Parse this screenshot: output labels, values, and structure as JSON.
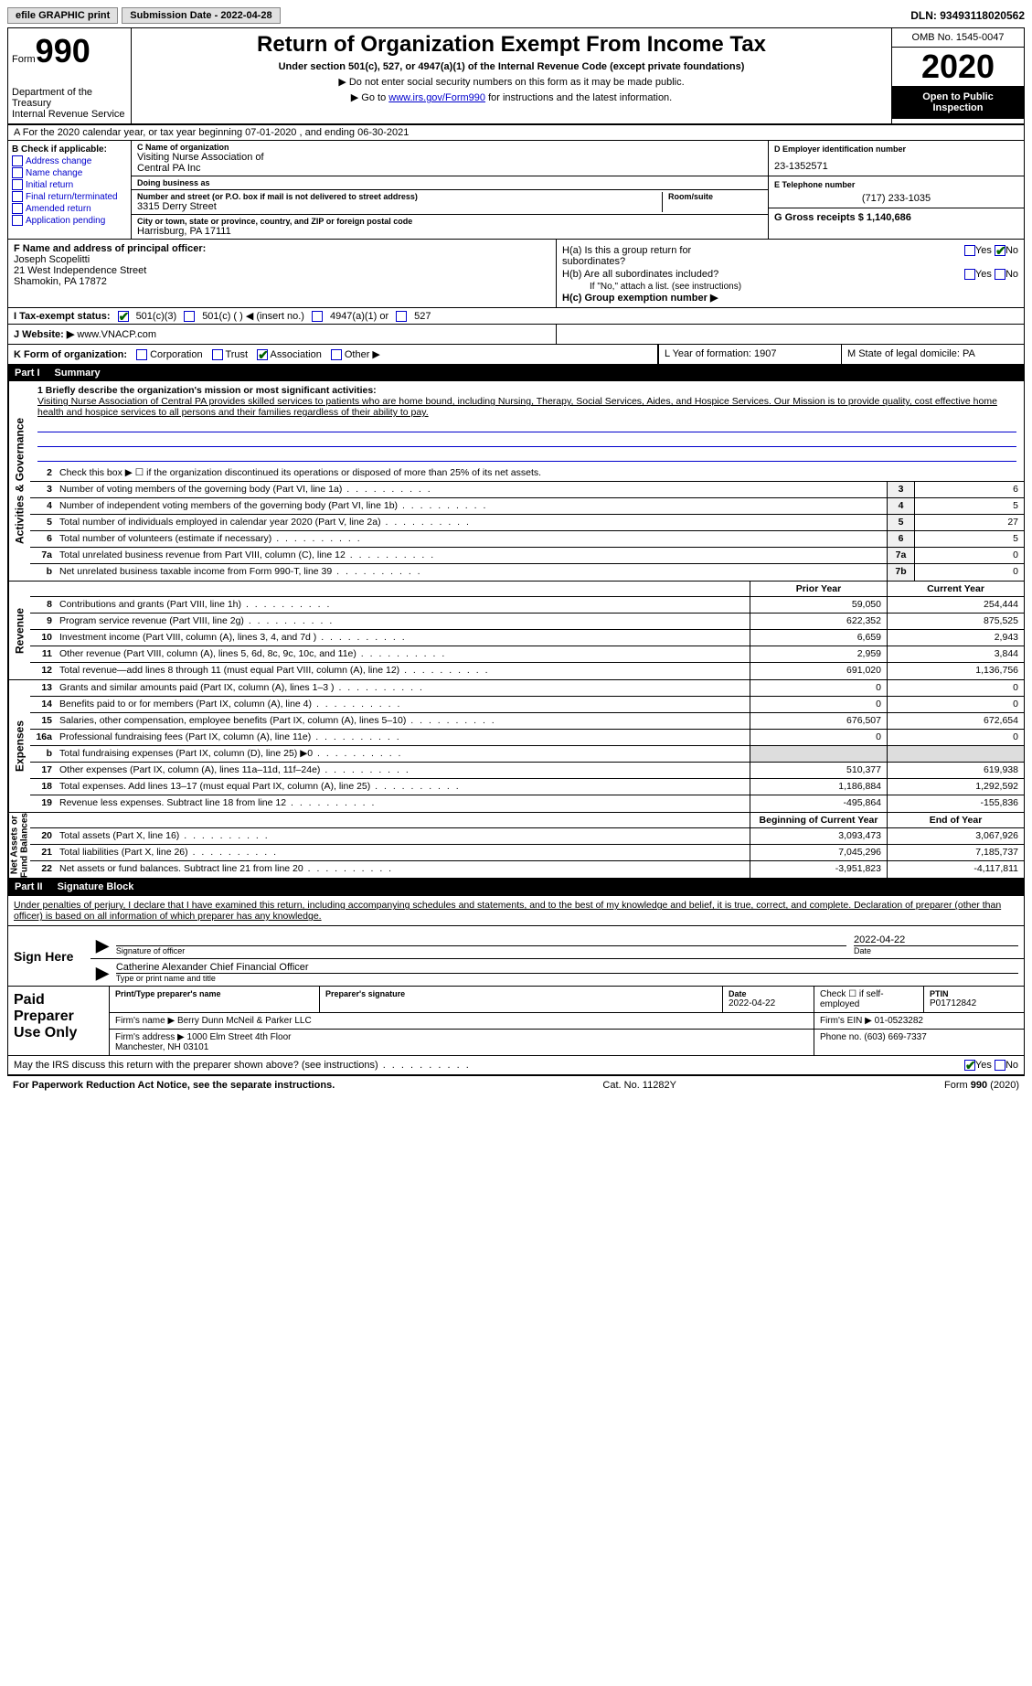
{
  "topbar": {
    "efile_label": "efile GRAPHIC print",
    "submission_label": "Submission Date - 2022-04-28",
    "dln_label": "DLN: 93493118020562"
  },
  "header": {
    "form_label": "Form",
    "form_number": "990",
    "dept": "Department of the Treasury\nInternal Revenue Service",
    "title": "Return of Organization Exempt From Income Tax",
    "subtitle": "Under section 501(c), 527, or 4947(a)(1) of the Internal Revenue Code (except private foundations)",
    "note1": "▶ Do not enter social security numbers on this form as it may be made public.",
    "note2_pre": "▶ Go to ",
    "note2_link": "www.irs.gov/Form990",
    "note2_post": " for instructions and the latest information.",
    "omb": "OMB No. 1545-0047",
    "year": "2020",
    "public": "Open to Public Inspection"
  },
  "period": {
    "text": "A For the 2020 calendar year, or tax year beginning 07-01-2020   , and ending 06-30-2021"
  },
  "section_b": {
    "label": "B Check if applicable:",
    "items": [
      "Address change",
      "Name change",
      "Initial return",
      "Final return/terminated",
      "Amended return",
      "Application pending"
    ]
  },
  "section_c": {
    "name_label": "C Name of organization",
    "name": "Visiting Nurse Association of\nCentral PA Inc",
    "dba_label": "Doing business as",
    "dba": "",
    "street_label": "Number and street (or P.O. box if mail is not delivered to street address)",
    "room_label": "Room/suite",
    "street": "3315 Derry Street",
    "city_label": "City or town, state or province, country, and ZIP or foreign postal code",
    "city": "Harrisburg, PA  17111"
  },
  "section_d": {
    "ein_label": "D Employer identification number",
    "ein": "23-1352571",
    "phone_label": "E Telephone number",
    "phone": "(717) 233-1035",
    "gross_label": "G Gross receipts $ 1,140,686"
  },
  "section_f": {
    "label": "F Name and address of principal officer:",
    "name": "Joseph Scopelitti",
    "addr1": "21 West Independence Street",
    "addr2": "Shamokin, PA  17872"
  },
  "section_h": {
    "ha_label": "H(a)  Is this a group return for subordinates?",
    "hb_label": "H(b)  Are all subordinates included?",
    "hb_note": "If \"No,\" attach a list. (see instructions)",
    "hc_label": "H(c)  Group exemption number ▶",
    "yes": "Yes",
    "no": "No"
  },
  "tax_status": {
    "label": "I   Tax-exempt status:",
    "opt1": "501(c)(3)",
    "opt2": "501(c) (  ) ◀ (insert no.)",
    "opt3": "4947(a)(1) or",
    "opt4": "527"
  },
  "website": {
    "label": "J   Website: ▶",
    "value": "www.VNACP.com"
  },
  "form_org": {
    "label": "K Form of organization:",
    "opts": [
      "Corporation",
      "Trust",
      "Association",
      "Other ▶"
    ],
    "checked_idx": 2
  },
  "lm": {
    "l_label": "L Year of formation: 1907",
    "m_label": "M State of legal domicile: PA"
  },
  "part1": {
    "num": "Part I",
    "title": "Summary",
    "mission_label": "1  Briefly describe the organization's mission or most significant activities:",
    "mission": "Visiting Nurse Association of Central PA provides skilled services to patients who are home bound, including Nursing, Therapy, Social Services, Aides, and Hospice Services. Our Mission is to provide quality, cost effective home health and hospice services to all persons and their families regardless of their ability to pay.",
    "line2": "Check this box ▶ ☐ if the organization discontinued its operations or disposed of more than 25% of its net assets.",
    "governance_rows": [
      {
        "n": "3",
        "d": "Number of voting members of the governing body (Part VI, line 1a)",
        "box": "3",
        "v": "6"
      },
      {
        "n": "4",
        "d": "Number of independent voting members of the governing body (Part VI, line 1b)",
        "box": "4",
        "v": "5"
      },
      {
        "n": "5",
        "d": "Total number of individuals employed in calendar year 2020 (Part V, line 2a)",
        "box": "5",
        "v": "27"
      },
      {
        "n": "6",
        "d": "Total number of volunteers (estimate if necessary)",
        "box": "6",
        "v": "5"
      },
      {
        "n": "7a",
        "d": "Total unrelated business revenue from Part VIII, column (C), line 12",
        "box": "7a",
        "v": "0"
      },
      {
        "n": "b",
        "d": "Net unrelated business taxable income from Form 990-T, line 39",
        "box": "7b",
        "v": "0"
      }
    ],
    "col_hdrs": {
      "prior": "Prior Year",
      "current": "Current Year"
    },
    "revenue_rows": [
      {
        "n": "8",
        "d": "Contributions and grants (Part VIII, line 1h)",
        "p": "59,050",
        "c": "254,444"
      },
      {
        "n": "9",
        "d": "Program service revenue (Part VIII, line 2g)",
        "p": "622,352",
        "c": "875,525"
      },
      {
        "n": "10",
        "d": "Investment income (Part VIII, column (A), lines 3, 4, and 7d )",
        "p": "6,659",
        "c": "2,943"
      },
      {
        "n": "11",
        "d": "Other revenue (Part VIII, column (A), lines 5, 6d, 8c, 9c, 10c, and 11e)",
        "p": "2,959",
        "c": "3,844"
      },
      {
        "n": "12",
        "d": "Total revenue—add lines 8 through 11 (must equal Part VIII, column (A), line 12)",
        "p": "691,020",
        "c": "1,136,756"
      }
    ],
    "expense_rows": [
      {
        "n": "13",
        "d": "Grants and similar amounts paid (Part IX, column (A), lines 1–3 )",
        "p": "0",
        "c": "0"
      },
      {
        "n": "14",
        "d": "Benefits paid to or for members (Part IX, column (A), line 4)",
        "p": "0",
        "c": "0"
      },
      {
        "n": "15",
        "d": "Salaries, other compensation, employee benefits (Part IX, column (A), lines 5–10)",
        "p": "676,507",
        "c": "672,654"
      },
      {
        "n": "16a",
        "d": "Professional fundraising fees (Part IX, column (A), line 11e)",
        "p": "0",
        "c": "0"
      },
      {
        "n": "b",
        "d": "Total fundraising expenses (Part IX, column (D), line 25) ▶0",
        "p": "",
        "c": ""
      },
      {
        "n": "17",
        "d": "Other expenses (Part IX, column (A), lines 11a–11d, 11f–24e)",
        "p": "510,377",
        "c": "619,938"
      },
      {
        "n": "18",
        "d": "Total expenses. Add lines 13–17 (must equal Part IX, column (A), line 25)",
        "p": "1,186,884",
        "c": "1,292,592"
      },
      {
        "n": "19",
        "d": "Revenue less expenses. Subtract line 18 from line 12",
        "p": "-495,864",
        "c": "-155,836"
      }
    ],
    "net_hdrs": {
      "begin": "Beginning of Current Year",
      "end": "End of Year"
    },
    "net_rows": [
      {
        "n": "20",
        "d": "Total assets (Part X, line 16)",
        "p": "3,093,473",
        "c": "3,067,926"
      },
      {
        "n": "21",
        "d": "Total liabilities (Part X, line 26)",
        "p": "7,045,296",
        "c": "7,185,737"
      },
      {
        "n": "22",
        "d": "Net assets or fund balances. Subtract line 21 from line 20",
        "p": "-3,951,823",
        "c": "-4,117,811"
      }
    ],
    "side_labels": {
      "gov": "Activities & Governance",
      "rev": "Revenue",
      "exp": "Expenses",
      "net": "Net Assets or\nFund Balances"
    }
  },
  "part2": {
    "num": "Part II",
    "title": "Signature Block",
    "decl": "Under penalties of perjury, I declare that I have examined this return, including accompanying schedules and statements, and to the best of my knowledge and belief, it is true, correct, and complete. Declaration of preparer (other than officer) is based on all information of which preparer has any knowledge.",
    "sign_here": "Sign Here",
    "sig_officer": "Signature of officer",
    "sig_date": "2022-04-22",
    "date_label": "Date",
    "officer_name": "Catherine Alexander  Chief Financial Officer",
    "officer_label": "Type or print name and title",
    "paid_prep": "Paid Preparer Use Only",
    "prep_name_label": "Print/Type preparer's name",
    "prep_sig_label": "Preparer's signature",
    "prep_date_label": "Date",
    "prep_date": "2022-04-22",
    "self_emp": "Check ☐ if self-employed",
    "ptin_label": "PTIN",
    "ptin": "P01712842",
    "firm_name_label": "Firm's name    ▶",
    "firm_name": "Berry Dunn McNeil & Parker LLC",
    "firm_ein_label": "Firm's EIN ▶",
    "firm_ein": "01-0523282",
    "firm_addr_label": "Firm's address ▶",
    "firm_addr": "1000 Elm Street 4th Floor\nManchester, NH  03101",
    "firm_phone_label": "Phone no.",
    "firm_phone": "(603) 669-7337",
    "discuss": "May the IRS discuss this return with the preparer shown above? (see instructions)"
  },
  "footer": {
    "left": "For Paperwork Reduction Act Notice, see the separate instructions.",
    "mid": "Cat. No. 11282Y",
    "right_pre": "Form ",
    "right_bold": "990",
    "right_post": " (2020)"
  }
}
